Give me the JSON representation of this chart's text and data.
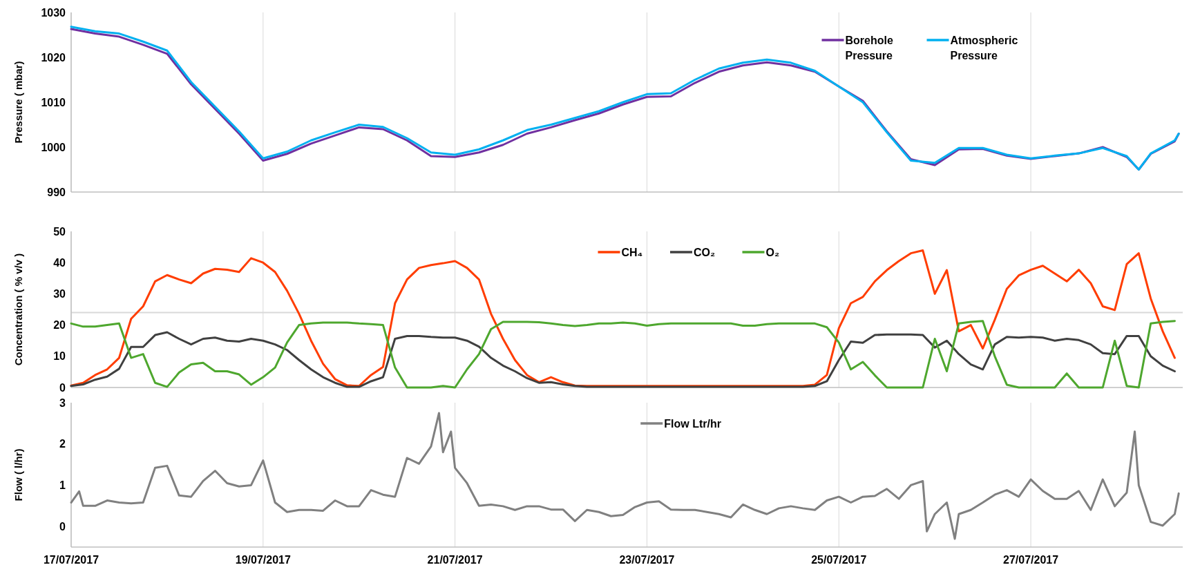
{
  "chart_data": [
    {
      "type": "line",
      "ylabel": "Pressure ( mbar)",
      "xlim": [
        "2017-07-17",
        "2017-07-28T14:00"
      ],
      "ylim": [
        990,
        1030
      ],
      "yticks": [
        990,
        1000,
        1010,
        1020,
        1030
      ],
      "xticks": [
        {
          "value": "2017-07-17",
          "label": null
        },
        {
          "value": "2017-07-19",
          "label": null
        },
        {
          "value": "2017-07-21",
          "label": null
        },
        {
          "value": "2017-07-23",
          "label": null
        },
        {
          "value": "2017-07-25",
          "label": null
        },
        {
          "value": "2017-07-27",
          "label": null
        }
      ],
      "tick_labels": "y",
      "grid": "x",
      "legend": "top right",
      "x": [
        "2017-07-17T00:00",
        "2017-07-17T06:00",
        "2017-07-17T12:00",
        "2017-07-17T18:00",
        "2017-07-18T00:00",
        "2017-07-18T06:00",
        "2017-07-18T12:00",
        "2017-07-18T18:00",
        "2017-07-19T00:00",
        "2017-07-19T06:00",
        "2017-07-19T12:00",
        "2017-07-19T18:00",
        "2017-07-20T00:00",
        "2017-07-20T06:00",
        "2017-07-20T12:00",
        "2017-07-20T18:00",
        "2017-07-21T00:00",
        "2017-07-21T06:00",
        "2017-07-21T12:00",
        "2017-07-21T18:00",
        "2017-07-22T00:00",
        "2017-07-22T06:00",
        "2017-07-22T12:00",
        "2017-07-22T18:00",
        "2017-07-23T00:00",
        "2017-07-23T06:00",
        "2017-07-23T12:00",
        "2017-07-23T18:00",
        "2017-07-24T00:00",
        "2017-07-24T06:00",
        "2017-07-24T12:00",
        "2017-07-24T18:00",
        "2017-07-25T00:00",
        "2017-07-25T06:00",
        "2017-07-25T12:00",
        "2017-07-25T18:00",
        "2017-07-26T00:00",
        "2017-07-26T06:00",
        "2017-07-26T12:00",
        "2017-07-26T18:00",
        "2017-07-27T00:00",
        "2017-07-27T06:00",
        "2017-07-27T12:00",
        "2017-07-27T18:00",
        "2017-07-28T00:00",
        "2017-07-28T03:00",
        "2017-07-28T06:00",
        "2017-07-28T12:00",
        "2017-07-28T13:00"
      ],
      "series": [
        {
          "name": "Borehole Pressure",
          "color": "#7030a0",
          "values": [
            1026.3,
            1025.3,
            1024.6,
            1022.8,
            1020.8,
            1014,
            1008.5,
            1003,
            997,
            998.5,
            1000.8,
            1002.6,
            1004.4,
            1004,
            1001.5,
            998,
            997.8,
            998.8,
            1000.5,
            1003,
            1004.4,
            1006,
            1007.5,
            1009.5,
            1011.2,
            1011.3,
            1014.3,
            1016.8,
            1018.2,
            1018.9,
            1018.2,
            1016.8,
            1013.5,
            1010.3,
            1003.5,
            997.3,
            996,
            999.5,
            999.6,
            998.1,
            997.4,
            998,
            998.6,
            1000,
            997.8,
            995,
            998.5,
            1001.3,
            1003
          ]
        },
        {
          "name": "Atmospheric Pressure",
          "color": "#00b0f0",
          "values": [
            1026.8,
            1025.8,
            1025.3,
            1023.5,
            1021.5,
            1014.5,
            1009,
            1003.5,
            997.5,
            999,
            1001.5,
            1003.3,
            1005,
            1004.5,
            1002,
            998.8,
            998.3,
            999.5,
            1001.5,
            1003.8,
            1005,
            1006.5,
            1008,
            1010,
            1011.8,
            1012,
            1015,
            1017.5,
            1018.8,
            1019.5,
            1018.8,
            1017,
            1013.5,
            1010,
            1003.3,
            997,
            996.5,
            999.8,
            999.8,
            998.3,
            997.5,
            998.1,
            998.6,
            999.8,
            998,
            995,
            998.6,
            1001.5,
            1003
          ]
        }
      ]
    },
    {
      "type": "line",
      "ylabel": "Concentration ( % v/v )",
      "xlim": [
        "2017-07-17",
        "2017-07-28T14:00"
      ],
      "ylim": [
        0,
        50
      ],
      "yticks": [
        0,
        10,
        20,
        30,
        40,
        50
      ],
      "xticks": [
        {
          "value": "2017-07-17",
          "label": null
        },
        {
          "value": "2017-07-19",
          "label": null
        },
        {
          "value": "2017-07-21",
          "label": null
        },
        {
          "value": "2017-07-23",
          "label": null
        },
        {
          "value": "2017-07-25",
          "label": null
        },
        {
          "value": "2017-07-27",
          "label": null
        }
      ],
      "tick_labels": "y",
      "grid": "x",
      "legend": "top",
      "ref_lines": [
        {
          "axis": "y",
          "value": 24,
          "color": "#d9d9d9"
        }
      ],
      "x": [
        "2017-07-17T00:00",
        "2017-07-17T03:00",
        "2017-07-17T06:00",
        "2017-07-17T09:00",
        "2017-07-17T12:00",
        "2017-07-17T15:00",
        "2017-07-17T18:00",
        "2017-07-17T21:00",
        "2017-07-18T00:00",
        "2017-07-18T03:00",
        "2017-07-18T06:00",
        "2017-07-18T09:00",
        "2017-07-18T12:00",
        "2017-07-18T15:00",
        "2017-07-18T18:00",
        "2017-07-18T21:00",
        "2017-07-19T00:00",
        "2017-07-19T03:00",
        "2017-07-19T06:00",
        "2017-07-19T09:00",
        "2017-07-19T12:00",
        "2017-07-19T15:00",
        "2017-07-19T18:00",
        "2017-07-19T21:00",
        "2017-07-20T00:00",
        "2017-07-20T03:00",
        "2017-07-20T06:00",
        "2017-07-20T09:00",
        "2017-07-20T12:00",
        "2017-07-20T15:00",
        "2017-07-20T18:00",
        "2017-07-20T21:00",
        "2017-07-21T00:00",
        "2017-07-21T03:00",
        "2017-07-21T06:00",
        "2017-07-21T09:00",
        "2017-07-21T12:00",
        "2017-07-21T15:00",
        "2017-07-21T18:00",
        "2017-07-21T21:00",
        "2017-07-22T00:00",
        "2017-07-22T03:00",
        "2017-07-22T06:00",
        "2017-07-22T09:00",
        "2017-07-22T12:00",
        "2017-07-22T15:00",
        "2017-07-22T18:00",
        "2017-07-22T21:00",
        "2017-07-23T00:00",
        "2017-07-23T03:00",
        "2017-07-23T06:00",
        "2017-07-23T09:00",
        "2017-07-23T12:00",
        "2017-07-23T15:00",
        "2017-07-23T18:00",
        "2017-07-23T21:00",
        "2017-07-24T00:00",
        "2017-07-24T03:00",
        "2017-07-24T06:00",
        "2017-07-24T09:00",
        "2017-07-24T12:00",
        "2017-07-24T15:00",
        "2017-07-24T18:00",
        "2017-07-24T21:00",
        "2017-07-25T00:00",
        "2017-07-25T03:00",
        "2017-07-25T06:00",
        "2017-07-25T09:00",
        "2017-07-25T12:00",
        "2017-07-25T15:00",
        "2017-07-25T18:00",
        "2017-07-25T21:00",
        "2017-07-26T00:00",
        "2017-07-26T03:00",
        "2017-07-26T06:00",
        "2017-07-26T09:00",
        "2017-07-26T12:00",
        "2017-07-26T15:00",
        "2017-07-26T18:00",
        "2017-07-26T21:00",
        "2017-07-27T00:00",
        "2017-07-27T03:00",
        "2017-07-27T06:00",
        "2017-07-27T09:00",
        "2017-07-27T12:00",
        "2017-07-27T15:00",
        "2017-07-27T18:00",
        "2017-07-27T21:00",
        "2017-07-28T00:00",
        "2017-07-28T03:00",
        "2017-07-28T06:00",
        "2017-07-28T09:00",
        "2017-07-28T12:00"
      ],
      "series": [
        {
          "name": "CH₄",
          "color": "#ff3d00",
          "values": [
            0.6,
            1.5,
            4,
            5.8,
            9.5,
            22,
            26,
            34,
            36,
            34.6,
            33.4,
            36.5,
            38,
            37.7,
            37,
            41.4,
            40,
            37,
            31,
            23.6,
            15,
            7.6,
            2.7,
            0.7,
            0.5,
            4,
            6.6,
            27,
            34.6,
            38.3,
            39.2,
            39.8,
            40.5,
            38.3,
            34.6,
            23.6,
            15.6,
            8.8,
            4,
            1.7,
            3.3,
            1.7,
            0.6,
            0.5,
            0.5,
            0.5,
            0.5,
            0.5,
            0.5,
            0.5,
            0.5,
            0.5,
            0.5,
            0.5,
            0.5,
            0.5,
            0.5,
            0.5,
            0.5,
            0.5,
            0.5,
            0.5,
            0.9,
            4,
            19,
            27,
            29,
            34,
            37.6,
            40.5,
            43,
            43.9,
            30,
            37.6,
            18,
            20,
            12.5,
            21.7,
            31.6,
            35.9,
            37.7,
            39,
            36.5,
            34,
            37.7,
            33.4,
            26,
            24.8,
            39.5,
            43,
            28.5,
            18,
            9.5
          ]
        },
        {
          "name": "CO₂",
          "color": "#404040",
          "values": [
            0.5,
            1,
            2.5,
            3.5,
            6,
            13,
            13,
            16.8,
            17.7,
            15.6,
            13.8,
            15.6,
            16,
            15,
            14.7,
            15.6,
            15,
            13.8,
            12,
            8.8,
            5.8,
            3.3,
            1.5,
            0.2,
            0.2,
            2,
            3.3,
            15.6,
            16.5,
            16.5,
            16.2,
            16,
            16,
            15,
            13.1,
            9.5,
            7,
            5.2,
            3,
            1.5,
            1.7,
            1,
            0.5,
            0.2,
            0.2,
            0.2,
            0.2,
            0.2,
            0.2,
            0.2,
            0.2,
            0.2,
            0.2,
            0.2,
            0.2,
            0.2,
            0.2,
            0.2,
            0.2,
            0.2,
            0.2,
            0.2,
            0.5,
            2,
            8.8,
            14.7,
            14.3,
            16.8,
            17,
            17,
            17,
            16.8,
            12.8,
            15,
            10.7,
            7.4,
            5.8,
            13.8,
            16.2,
            16,
            16.2,
            16,
            15,
            15.6,
            15.2,
            13.8,
            11,
            10.7,
            16.5,
            16.5,
            10,
            7,
            5.2
          ]
        },
        {
          "name": "O₂",
          "color": "#4ea72e",
          "values": [
            20.5,
            19.5,
            19.5,
            20,
            20.5,
            9.5,
            10.7,
            1.5,
            0.2,
            4.8,
            7.4,
            7.9,
            5.2,
            5.2,
            4.2,
            0.9,
            3.3,
            6.4,
            14.4,
            20,
            20.5,
            20.8,
            20.8,
            20.8,
            20.5,
            20.3,
            20,
            6.4,
            0,
            0,
            0,
            0.5,
            0,
            5.8,
            10.7,
            18.7,
            21,
            21,
            21,
            20.9,
            20.5,
            20,
            19.7,
            20,
            20.5,
            20.5,
            20.8,
            20.5,
            19.8,
            20.3,
            20.5,
            20.5,
            20.5,
            20.5,
            20.5,
            20.5,
            19.8,
            19.8,
            20.3,
            20.5,
            20.5,
            20.5,
            20.5,
            19.3,
            14.4,
            5.8,
            8.2,
            3.9,
            0,
            0,
            0,
            0,
            15.6,
            5.2,
            20.5,
            21,
            21.3,
            10,
            0.9,
            0,
            0,
            0,
            0,
            4.5,
            0,
            0,
            0,
            15,
            0.5,
            0,
            20.5,
            21,
            21.3
          ]
        }
      ]
    },
    {
      "type": "line",
      "ylabel": "Flow ( l/hr)",
      "xlim": [
        "2017-07-17",
        "2017-07-28T14:00"
      ],
      "ylim": [
        -0.5,
        3
      ],
      "yticks": [
        0,
        1,
        2,
        3
      ],
      "xticks": [
        {
          "value": "2017-07-17",
          "label": "17/07/2017"
        },
        {
          "value": "2017-07-19",
          "label": "19/07/2017"
        },
        {
          "value": "2017-07-21",
          "label": "21/07/2017"
        },
        {
          "value": "2017-07-23",
          "label": "23/07/2017"
        },
        {
          "value": "2017-07-25",
          "label": "25/07/2017"
        },
        {
          "value": "2017-07-27",
          "label": "27/07/2017"
        }
      ],
      "grid": "x",
      "legend": "top",
      "x": [
        "2017-07-17T00:00",
        "2017-07-17T02:00",
        "2017-07-17T03:00",
        "2017-07-17T06:00",
        "2017-07-17T09:00",
        "2017-07-17T12:00",
        "2017-07-17T15:00",
        "2017-07-17T18:00",
        "2017-07-17T21:00",
        "2017-07-18T00:00",
        "2017-07-18T03:00",
        "2017-07-18T06:00",
        "2017-07-18T09:00",
        "2017-07-18T12:00",
        "2017-07-18T15:00",
        "2017-07-18T18:00",
        "2017-07-18T21:00",
        "2017-07-19T00:00",
        "2017-07-19T03:00",
        "2017-07-19T06:00",
        "2017-07-19T09:00",
        "2017-07-19T12:00",
        "2017-07-19T15:00",
        "2017-07-19T18:00",
        "2017-07-19T21:00",
        "2017-07-20T00:00",
        "2017-07-20T03:00",
        "2017-07-20T06:00",
        "2017-07-20T09:00",
        "2017-07-20T12:00",
        "2017-07-20T15:00",
        "2017-07-20T18:00",
        "2017-07-20T20:00",
        "2017-07-20T21:00",
        "2017-07-20T23:00",
        "2017-07-21T00:00",
        "2017-07-21T03:00",
        "2017-07-21T06:00",
        "2017-07-21T09:00",
        "2017-07-21T12:00",
        "2017-07-21T15:00",
        "2017-07-21T18:00",
        "2017-07-21T21:00",
        "2017-07-22T00:00",
        "2017-07-22T03:00",
        "2017-07-22T06:00",
        "2017-07-22T09:00",
        "2017-07-22T12:00",
        "2017-07-22T15:00",
        "2017-07-22T18:00",
        "2017-07-22T21:00",
        "2017-07-23T00:00",
        "2017-07-23T03:00",
        "2017-07-23T06:00",
        "2017-07-23T09:00",
        "2017-07-23T12:00",
        "2017-07-23T15:00",
        "2017-07-23T18:00",
        "2017-07-23T21:00",
        "2017-07-24T00:00",
        "2017-07-24T03:00",
        "2017-07-24T06:00",
        "2017-07-24T09:00",
        "2017-07-24T12:00",
        "2017-07-24T15:00",
        "2017-07-24T18:00",
        "2017-07-24T21:00",
        "2017-07-25T00:00",
        "2017-07-25T03:00",
        "2017-07-25T06:00",
        "2017-07-25T09:00",
        "2017-07-25T12:00",
        "2017-07-25T15:00",
        "2017-07-25T18:00",
        "2017-07-25T21:00",
        "2017-07-25T22:00",
        "2017-07-26T00:00",
        "2017-07-26T03:00",
        "2017-07-26T05:00",
        "2017-07-26T06:00",
        "2017-07-26T09:00",
        "2017-07-26T12:00",
        "2017-07-26T15:00",
        "2017-07-26T18:00",
        "2017-07-26T21:00",
        "2017-07-27T00:00",
        "2017-07-27T03:00",
        "2017-07-27T06:00",
        "2017-07-27T09:00",
        "2017-07-27T12:00",
        "2017-07-27T15:00",
        "2017-07-27T18:00",
        "2017-07-27T21:00",
        "2017-07-28T00:00",
        "2017-07-28T02:00",
        "2017-07-28T03:00",
        "2017-07-28T06:00",
        "2017-07-28T09:00",
        "2017-07-28T12:00",
        "2017-07-28T13:00"
      ],
      "series": [
        {
          "name": "Flow Ltr/hr",
          "color": "#808080",
          "values": [
            0.58,
            0.85,
            0.5,
            0.5,
            0.63,
            0.58,
            0.56,
            0.58,
            1.42,
            1.47,
            0.75,
            0.72,
            1.1,
            1.35,
            1.05,
            0.97,
            1.0,
            1.6,
            0.58,
            0.35,
            0.4,
            0.4,
            0.38,
            0.63,
            0.49,
            0.49,
            0.88,
            0.77,
            0.72,
            1.66,
            1.52,
            1.94,
            2.75,
            1.8,
            2.3,
            1.42,
            1.05,
            0.5,
            0.53,
            0.49,
            0.4,
            0.49,
            0.49,
            0.41,
            0.41,
            0.13,
            0.4,
            0.35,
            0.25,
            0.28,
            0.47,
            0.58,
            0.61,
            0.41,
            0.4,
            0.4,
            0.35,
            0.3,
            0.22,
            0.53,
            0.4,
            0.3,
            0.44,
            0.49,
            0.44,
            0.4,
            0.63,
            0.72,
            0.58,
            0.72,
            0.74,
            0.91,
            0.67,
            1.0,
            1.1,
            -0.12,
            0.3,
            0.58,
            -0.3,
            0.3,
            0.4,
            0.58,
            0.77,
            0.88,
            0.72,
            1.14,
            0.86,
            0.67,
            0.67,
            0.86,
            0.4,
            1.14,
            0.49,
            0.82,
            2.3,
            1.0,
            0.11,
            0.02,
            0.3,
            0.8
          ]
        }
      ]
    }
  ]
}
